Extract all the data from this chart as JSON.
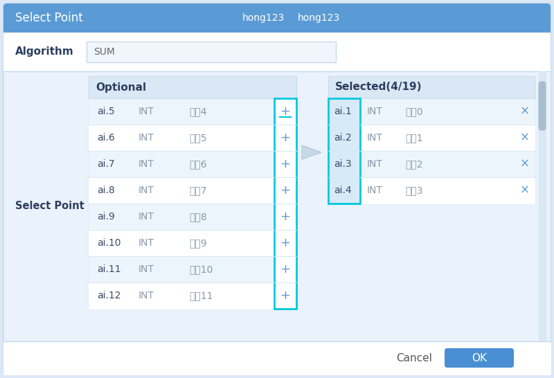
{
  "title": "Select Point",
  "title_right1": "hong123",
  "title_right2": "hong123",
  "title_bg": "#5b9bd5",
  "algorithm_label": "Algorithm",
  "algorithm_value": "SUM",
  "select_point_label": "Select Point",
  "optional_label": "Optional",
  "selected_label": "Selected(4/19)",
  "optional_rows": [
    [
      "ai.5",
      "INT",
      "测兗4"
    ],
    [
      "ai.6",
      "INT",
      "测兗5"
    ],
    [
      "ai.7",
      "INT",
      "测兗6"
    ],
    [
      "ai.8",
      "INT",
      "测兗7"
    ],
    [
      "ai.9",
      "INT",
      "测兗8"
    ],
    [
      "ai.10",
      "INT",
      "测兗9"
    ],
    [
      "ai.11",
      "INT",
      "测兗10"
    ],
    [
      "ai.12",
      "INT",
      "测兗11"
    ]
  ],
  "selected_rows": [
    [
      "ai.1",
      "INT",
      "测兗0"
    ],
    [
      "ai.2",
      "INT",
      "测兗1"
    ],
    [
      "ai.3",
      "INT",
      "测兗2"
    ],
    [
      "ai.4",
      "INT",
      "测兗3"
    ]
  ],
  "cancel_label": "Cancel",
  "ok_label": "OK",
  "ok_bg": "#4a8fd4",
  "text_dark": "#2c3e60",
  "text_blue": "#5b9bd5",
  "text_gray": "#8899aa",
  "cyan_border": "#00c8e0",
  "arrow_color": "#bbbbbb",
  "body_bg": "#eaf2fb",
  "table_bg": "#ffffff",
  "header_bg": "#dae8f5",
  "row_alt_bg": "#edf5fc",
  "sel_col_bg": "#d6eaf8",
  "border_col": "#c5d8ec"
}
